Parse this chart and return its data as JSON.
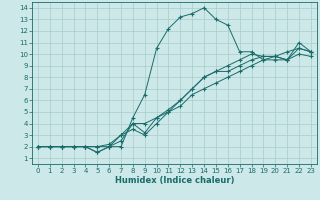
{
  "xlabel": "Humidex (Indice chaleur)",
  "bg_color": "#cce8e8",
  "grid_color": "#aacccc",
  "line_color": "#1a6b6b",
  "xlim": [
    -0.5,
    23.5
  ],
  "ylim": [
    0.5,
    14.5
  ],
  "xticks": [
    0,
    1,
    2,
    3,
    4,
    5,
    6,
    7,
    8,
    9,
    10,
    11,
    12,
    13,
    14,
    15,
    16,
    17,
    18,
    19,
    20,
    21,
    22,
    23
  ],
  "yticks": [
    1,
    2,
    3,
    4,
    5,
    6,
    7,
    8,
    9,
    10,
    11,
    12,
    13,
    14
  ],
  "line1_x": [
    0,
    1,
    2,
    3,
    4,
    5,
    6,
    7,
    8,
    9,
    10,
    11,
    12,
    13,
    14,
    15,
    16,
    17,
    18,
    19,
    20,
    21,
    22,
    23
  ],
  "line1_y": [
    2,
    2,
    2,
    2,
    2,
    1.5,
    2,
    2,
    4.5,
    6.5,
    10.5,
    12.2,
    13.2,
    13.5,
    14,
    13,
    12.5,
    10.2,
    10.2,
    9.5,
    9.5,
    9.5,
    11,
    10.2
  ],
  "line2_x": [
    0,
    1,
    2,
    3,
    4,
    5,
    6,
    7,
    8,
    9,
    10,
    11,
    12,
    13,
    14,
    15,
    16,
    17,
    18,
    19,
    20,
    21,
    22,
    23
  ],
  "line2_y": [
    2,
    2,
    2,
    2,
    2,
    1.5,
    2,
    2.5,
    4,
    4,
    4.5,
    5,
    6,
    7,
    8,
    8.5,
    9,
    9.5,
    10,
    9.8,
    9.8,
    10.2,
    10.5,
    10.2
  ],
  "line3_x": [
    0,
    1,
    2,
    3,
    4,
    5,
    6,
    7,
    8,
    9,
    10,
    11,
    12,
    13,
    14,
    15,
    16,
    17,
    18,
    19,
    20,
    21,
    22,
    23
  ],
  "line3_y": [
    2,
    2,
    2,
    2,
    2,
    2,
    2,
    3,
    4,
    3.2,
    4.5,
    5.2,
    6,
    7,
    8,
    8.5,
    8.5,
    9,
    9.5,
    9.8,
    9.8,
    9.5,
    10.5,
    10.2
  ],
  "line4_x": [
    0,
    1,
    2,
    3,
    4,
    5,
    6,
    7,
    8,
    9,
    10,
    11,
    12,
    13,
    14,
    15,
    16,
    17,
    18,
    19,
    20,
    21,
    22,
    23
  ],
  "line4_y": [
    2,
    2,
    2,
    2,
    2,
    2,
    2.2,
    3,
    3.5,
    3,
    4,
    5,
    5.5,
    6.5,
    7,
    7.5,
    8,
    8.5,
    9,
    9.5,
    9.8,
    9.5,
    10,
    9.8
  ],
  "tick_fontsize": 5,
  "xlabel_fontsize": 6,
  "marker_size": 3,
  "line_width": 0.7
}
